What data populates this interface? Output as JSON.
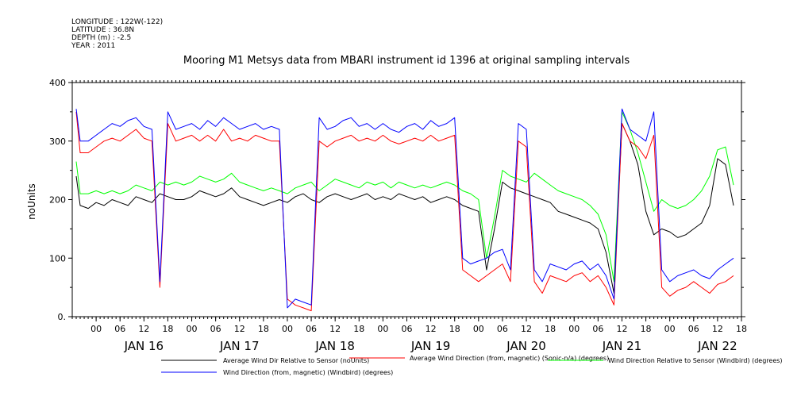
{
  "meta": {
    "longitude": "LONGITUDE : 122W(-122)",
    "latitude": "LATITUDE : 36.8N",
    "depth": "DEPTH (m) : -2.5",
    "year": "YEAR : 2011"
  },
  "chart_data": {
    "type": "line",
    "title": "Mooring M1 Metsys data from MBARI instrument id 1396 at original sampling intervals",
    "ylabel": "noUnits",
    "ylim": [
      0,
      400
    ],
    "yticks": [
      0,
      100,
      200,
      300,
      400
    ],
    "ytick_labels": [
      "0.",
      "100",
      "200",
      "300",
      "400"
    ],
    "xlim": [
      -6,
      162
    ],
    "xtick_labels": [
      "00",
      "06",
      "12",
      "18",
      "00",
      "06",
      "12",
      "18",
      "00",
      "06",
      "12",
      "18",
      "00",
      "06",
      "12",
      "18",
      "00",
      "06",
      "12",
      "18",
      "00",
      "06",
      "12",
      "18",
      "00",
      "06",
      "12",
      "18"
    ],
    "day_labels": [
      "JAN 16",
      "JAN 17",
      "JAN 18",
      "JAN 19",
      "JAN 20",
      "JAN 21",
      "JAN 22"
    ],
    "grid": false,
    "legend_position": "bottom",
    "series": [
      {
        "name": "Average Wind Dir Relative to Sensor (noUnits)",
        "color": "#000000",
        "x": [
          -5,
          -4,
          -2,
          0,
          2,
          4,
          6,
          8,
          10,
          12,
          14,
          16,
          18,
          20,
          22,
          24,
          26,
          28,
          30,
          32,
          34,
          36,
          38,
          40,
          42,
          44,
          46,
          48,
          50,
          52,
          54,
          56,
          58,
          60,
          62,
          64,
          66,
          68,
          70,
          72,
          74,
          76,
          78,
          80,
          82,
          84,
          86,
          88,
          90,
          92,
          94,
          96,
          98,
          100,
          102,
          104,
          106,
          108,
          110,
          112,
          114,
          116,
          118,
          120,
          122,
          124,
          126,
          128,
          130,
          132,
          134,
          136,
          138,
          140,
          142,
          144,
          146,
          148,
          150,
          152,
          154,
          156,
          158,
          160
        ],
        "y": [
          240,
          190,
          185,
          195,
          190,
          200,
          195,
          190,
          205,
          200,
          195,
          210,
          205,
          200,
          200,
          205,
          215,
          210,
          205,
          210,
          220,
          205,
          200,
          195,
          190,
          195,
          200,
          195,
          205,
          210,
          200,
          195,
          205,
          210,
          205,
          200,
          205,
          210,
          200,
          205,
          200,
          210,
          205,
          200,
          205,
          195,
          200,
          205,
          200,
          190,
          185,
          180,
          80,
          150,
          230,
          220,
          215,
          210,
          205,
          200,
          195,
          180,
          175,
          170,
          165,
          160,
          150,
          110,
          40,
          330,
          300,
          260,
          180,
          140,
          150,
          145,
          135,
          140,
          150,
          160,
          190,
          270,
          260,
          190
        ]
      },
      {
        "name": "Average Wind Direction (from, magnetic) (Sonic-n/a) (degrees)",
        "color": "#ff0000",
        "x": [
          -5,
          -4,
          -2,
          0,
          2,
          4,
          6,
          8,
          10,
          12,
          14,
          16,
          18,
          20,
          22,
          24,
          26,
          28,
          30,
          32,
          34,
          36,
          38,
          40,
          42,
          44,
          46,
          48,
          50,
          52,
          54,
          56,
          58,
          60,
          62,
          64,
          66,
          68,
          70,
          72,
          74,
          76,
          78,
          80,
          82,
          84,
          86,
          88,
          90,
          92,
          94,
          96,
          98,
          100,
          102,
          104,
          106,
          108,
          110,
          112,
          114,
          116,
          118,
          120,
          122,
          124,
          126,
          128,
          130,
          132,
          134,
          136,
          138,
          140,
          142,
          144,
          146,
          148,
          150,
          152,
          154,
          156,
          158,
          160
        ],
        "y": [
          350,
          280,
          280,
          290,
          300,
          305,
          300,
          310,
          320,
          305,
          300,
          50,
          330,
          300,
          305,
          310,
          300,
          310,
          300,
          320,
          300,
          305,
          300,
          310,
          305,
          300,
          300,
          30,
          20,
          15,
          10,
          300,
          290,
          300,
          305,
          310,
          300,
          305,
          300,
          310,
          300,
          295,
          300,
          305,
          300,
          310,
          300,
          305,
          310,
          80,
          70,
          60,
          70,
          80,
          90,
          60,
          300,
          290,
          60,
          40,
          70,
          65,
          60,
          70,
          75,
          60,
          70,
          50,
          20,
          330,
          300,
          290,
          270,
          310,
          50,
          35,
          45,
          50,
          60,
          50,
          40,
          55,
          60,
          70
        ]
      },
      {
        "name": "Wind Direction Relative to Sensor (Windbird) (degrees)",
        "color": "#00ff00",
        "x": [
          -5,
          -4,
          -2,
          0,
          2,
          4,
          6,
          8,
          10,
          12,
          14,
          16,
          18,
          20,
          22,
          24,
          26,
          28,
          30,
          32,
          34,
          36,
          38,
          40,
          42,
          44,
          46,
          48,
          50,
          52,
          54,
          56,
          58,
          60,
          62,
          64,
          66,
          68,
          70,
          72,
          74,
          76,
          78,
          80,
          82,
          84,
          86,
          88,
          90,
          92,
          94,
          96,
          98,
          100,
          102,
          104,
          106,
          108,
          110,
          112,
          114,
          116,
          118,
          120,
          122,
          124,
          126,
          128,
          130,
          132,
          134,
          136,
          138,
          140,
          142,
          144,
          146,
          148,
          150,
          152,
          154,
          156,
          158,
          160
        ],
        "y": [
          265,
          210,
          210,
          215,
          210,
          215,
          210,
          215,
          225,
          220,
          215,
          230,
          225,
          230,
          225,
          230,
          240,
          235,
          230,
          235,
          245,
          230,
          225,
          220,
          215,
          220,
          215,
          210,
          220,
          225,
          230,
          215,
          225,
          235,
          230,
          225,
          220,
          230,
          225,
          230,
          220,
          230,
          225,
          220,
          225,
          220,
          225,
          230,
          225,
          215,
          210,
          200,
          100,
          170,
          250,
          240,
          235,
          230,
          245,
          235,
          225,
          215,
          210,
          205,
          200,
          190,
          175,
          140,
          60,
          350,
          320,
          280,
          230,
          180,
          200,
          190,
          185,
          190,
          200,
          215,
          240,
          285,
          290,
          225
        ]
      },
      {
        "name": "Wind Direction (from, magnetic) (Windbird) (degrees)",
        "color": "#0000ff",
        "x": [
          -5,
          -4,
          -2,
          0,
          2,
          4,
          6,
          8,
          10,
          12,
          14,
          16,
          18,
          20,
          22,
          24,
          26,
          28,
          30,
          32,
          34,
          36,
          38,
          40,
          42,
          44,
          46,
          48,
          50,
          52,
          54,
          56,
          58,
          60,
          62,
          64,
          66,
          68,
          70,
          72,
          74,
          76,
          78,
          80,
          82,
          84,
          86,
          88,
          90,
          92,
          94,
          96,
          98,
          100,
          102,
          104,
          106,
          108,
          110,
          112,
          114,
          116,
          118,
          120,
          122,
          124,
          126,
          128,
          130,
          132,
          134,
          136,
          138,
          140,
          142,
          144,
          146,
          148,
          150,
          152,
          154,
          156,
          158,
          160
        ],
        "y": [
          355,
          300,
          300,
          310,
          320,
          330,
          325,
          335,
          340,
          325,
          320,
          60,
          350,
          320,
          325,
          330,
          320,
          335,
          325,
          340,
          330,
          320,
          325,
          330,
          320,
          325,
          320,
          15,
          30,
          25,
          20,
          340,
          320,
          325,
          335,
          340,
          325,
          330,
          320,
          330,
          320,
          315,
          325,
          330,
          320,
          335,
          325,
          330,
          340,
          100,
          90,
          95,
          100,
          110,
          115,
          80,
          330,
          320,
          80,
          60,
          90,
          85,
          80,
          90,
          95,
          80,
          90,
          70,
          30,
          355,
          320,
          310,
          300,
          350,
          80,
          60,
          70,
          75,
          80,
          70,
          65,
          80,
          90,
          100
        ]
      }
    ]
  }
}
